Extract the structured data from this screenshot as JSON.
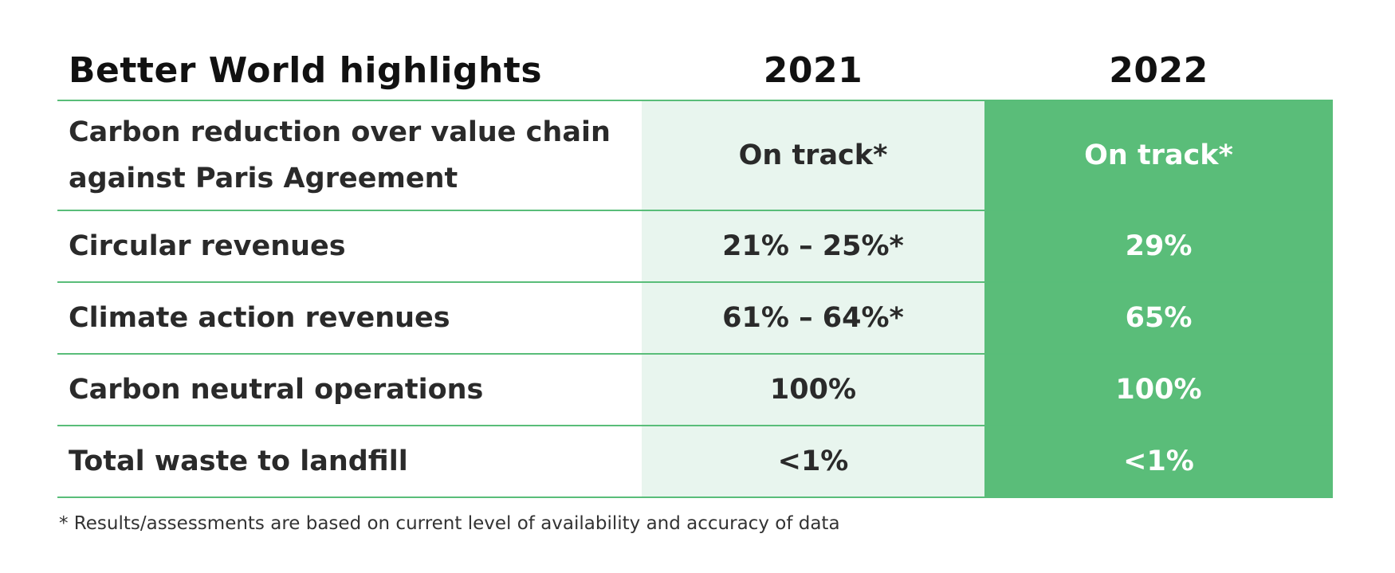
{
  "table": {
    "title": "Better World highlights",
    "columns": [
      "2021",
      "2022"
    ],
    "rows": [
      {
        "label_line1": "Carbon reduction over value chain",
        "label_line2": "against Paris Agreement",
        "v2021": "On track*",
        "v2022": "On track*"
      },
      {
        "label": "Circular revenues",
        "v2021": "21% – 25%*",
        "v2022": "29%"
      },
      {
        "label": "Climate action revenues",
        "v2021": "61% – 64%*",
        "v2022": "65%"
      },
      {
        "label": "Carbon neutral operations",
        "v2021": "100%",
        "v2022": "100%"
      },
      {
        "label": "Total waste to landfill",
        "v2021": "<1%",
        "v2022": "<1%"
      }
    ]
  },
  "footnote": "* Results/assessments are based on current level of availability and accuracy of data",
  "colors": {
    "accent_green": "#5abd79",
    "light_green": "#e8f5ee",
    "border_green": "#59bd79"
  }
}
